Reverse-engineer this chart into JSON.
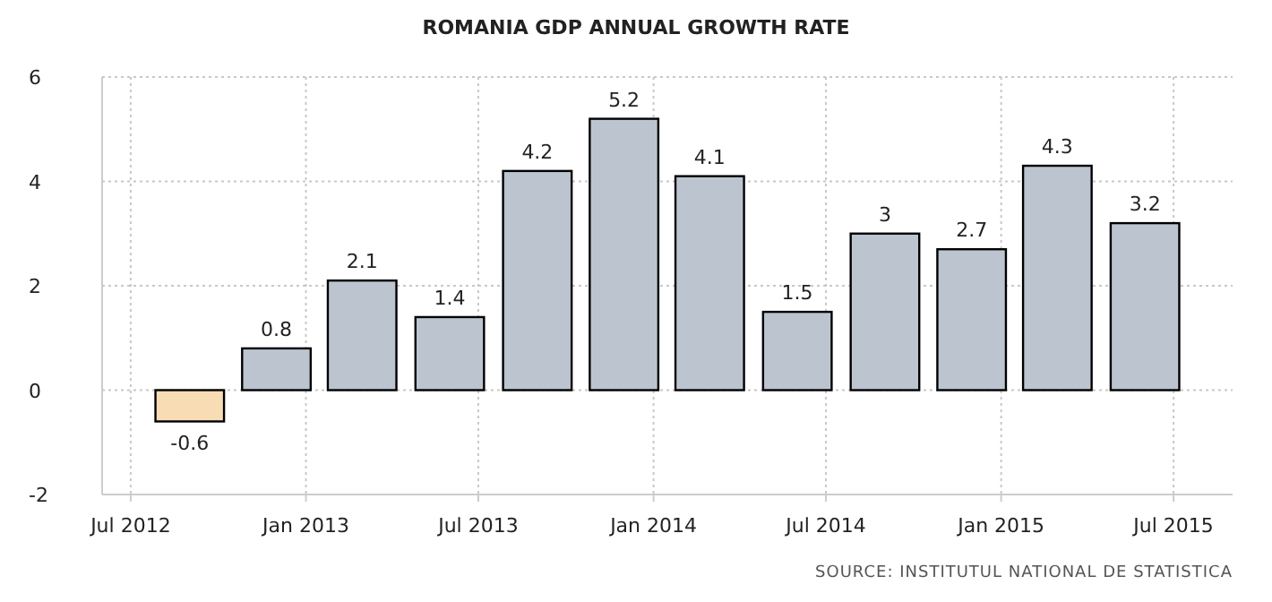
{
  "chart_data": {
    "type": "bar",
    "title": "ROMANIA GDP ANNUAL GROWTH RATE",
    "x": [
      "2012-09",
      "2012-12",
      "2013-03",
      "2013-06",
      "2013-09",
      "2013-12",
      "2014-03",
      "2014-06",
      "2014-09",
      "2014-12",
      "2015-03",
      "2015-06"
    ],
    "values": [
      -0.6,
      0.8,
      2.1,
      1.4,
      4.2,
      5.2,
      4.1,
      1.5,
      3,
      2.7,
      4.3,
      3.2
    ],
    "colors": [
      "#f7dcb4",
      "#bcc5cf",
      "#bcc5cf",
      "#bcc5cf",
      "#bcc5cf",
      "#bcc5cf",
      "#bcc5cf",
      "#bcc5cf",
      "#bcc5cf",
      "#bcc5cf",
      "#bcc5cf",
      "#bcc5cf"
    ],
    "xlim": [
      "2012-06",
      "2015-09"
    ],
    "xticks": [
      {
        "value": "2012-07",
        "label": "Jul 2012"
      },
      {
        "value": "2013-01",
        "label": "Jan 2013"
      },
      {
        "value": "2013-07",
        "label": "Jul 2013"
      },
      {
        "value": "2014-01",
        "label": "Jan 2014"
      },
      {
        "value": "2014-07",
        "label": "Jul 2014"
      },
      {
        "value": "2015-01",
        "label": "Jan 2015"
      },
      {
        "value": "2015-07",
        "label": "Jul 2015"
      }
    ],
    "ylim": [
      -2,
      6
    ],
    "yticks": [
      -2,
      0,
      2,
      4,
      6
    ],
    "grid": true,
    "data_labels": true,
    "annotations": [
      "SOURCE: INSTITUTUL NATIONAL DE STATISTICA"
    ]
  }
}
